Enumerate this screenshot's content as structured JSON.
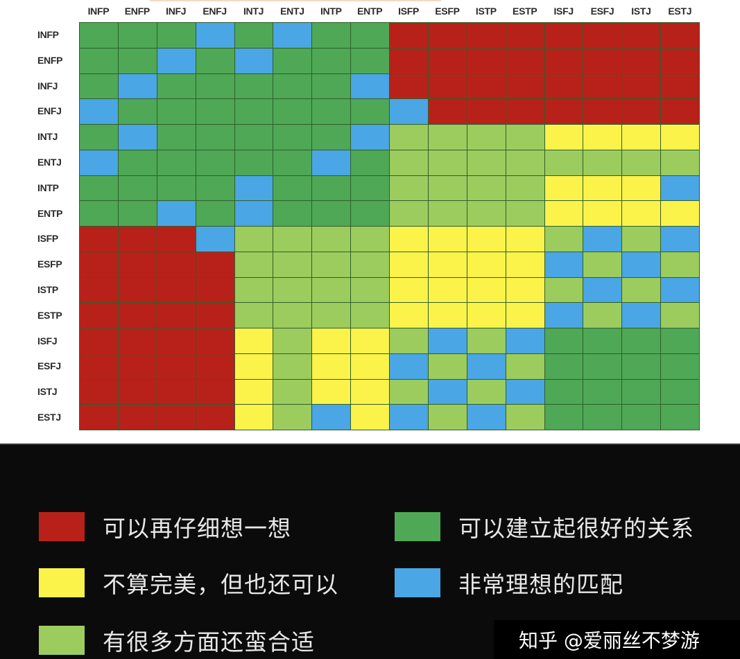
{
  "chart_data": {
    "type": "heatmap",
    "title": "",
    "xlabel": "",
    "ylabel": "",
    "x_labels": [
      "INFP",
      "ENFP",
      "INFJ",
      "ENFJ",
      "INTJ",
      "ENTJ",
      "INTP",
      "ENTP",
      "ISFP",
      "ESFP",
      "ISTP",
      "ESTP",
      "ISFJ",
      "ESFJ",
      "ISTJ",
      "ESTJ"
    ],
    "y_labels": [
      "INFP",
      "ENFP",
      "INFJ",
      "ENFJ",
      "INTJ",
      "ENTJ",
      "INTP",
      "ENTP",
      "ISFP",
      "ESFP",
      "ISTP",
      "ESTP",
      "ISFJ",
      "ESFJ",
      "ISTJ",
      "ESTJ"
    ],
    "categories": {
      "R": {
        "label": "可以再仔细想一想",
        "color": "#b8211a"
      },
      "Y": {
        "label": "不算完美，但也还可以",
        "color": "#fbf34a"
      },
      "L": {
        "label": "有很多方面还蛮合适",
        "color": "#9ccc5e"
      },
      "G": {
        "label": "可以建立起很好的关系",
        "color": "#4ea856"
      },
      "B": {
        "label": "非常理想的匹配",
        "color": "#4aa6e4"
      }
    },
    "matrix": [
      [
        "G",
        "G",
        "G",
        "B",
        "G",
        "B",
        "G",
        "G",
        "R",
        "R",
        "R",
        "R",
        "R",
        "R",
        "R",
        "R"
      ],
      [
        "G",
        "G",
        "B",
        "G",
        "B",
        "G",
        "G",
        "G",
        "R",
        "R",
        "R",
        "R",
        "R",
        "R",
        "R",
        "R"
      ],
      [
        "G",
        "B",
        "G",
        "G",
        "G",
        "G",
        "G",
        "B",
        "R",
        "R",
        "R",
        "R",
        "R",
        "R",
        "R",
        "R"
      ],
      [
        "B",
        "G",
        "G",
        "G",
        "G",
        "G",
        "G",
        "G",
        "B",
        "R",
        "R",
        "R",
        "R",
        "R",
        "R",
        "R"
      ],
      [
        "G",
        "B",
        "G",
        "G",
        "G",
        "G",
        "G",
        "B",
        "L",
        "L",
        "L",
        "L",
        "Y",
        "Y",
        "Y",
        "Y"
      ],
      [
        "B",
        "G",
        "G",
        "G",
        "G",
        "G",
        "B",
        "G",
        "L",
        "L",
        "L",
        "L",
        "L",
        "L",
        "L",
        "L"
      ],
      [
        "G",
        "G",
        "G",
        "G",
        "B",
        "G",
        "G",
        "G",
        "L",
        "L",
        "L",
        "L",
        "Y",
        "Y",
        "Y",
        "B"
      ],
      [
        "G",
        "G",
        "B",
        "G",
        "B",
        "G",
        "G",
        "G",
        "L",
        "L",
        "L",
        "L",
        "Y",
        "Y",
        "Y",
        "Y"
      ],
      [
        "R",
        "R",
        "R",
        "B",
        "L",
        "L",
        "L",
        "L",
        "Y",
        "Y",
        "Y",
        "Y",
        "L",
        "B",
        "L",
        "B"
      ],
      [
        "R",
        "R",
        "R",
        "R",
        "L",
        "L",
        "L",
        "L",
        "Y",
        "Y",
        "Y",
        "Y",
        "B",
        "L",
        "B",
        "L"
      ],
      [
        "R",
        "R",
        "R",
        "R",
        "L",
        "L",
        "L",
        "L",
        "Y",
        "Y",
        "Y",
        "Y",
        "L",
        "B",
        "L",
        "B"
      ],
      [
        "R",
        "R",
        "R",
        "R",
        "L",
        "L",
        "L",
        "L",
        "Y",
        "Y",
        "Y",
        "Y",
        "B",
        "L",
        "B",
        "L"
      ],
      [
        "R",
        "R",
        "R",
        "R",
        "Y",
        "L",
        "Y",
        "Y",
        "L",
        "B",
        "L",
        "B",
        "G",
        "G",
        "G",
        "G"
      ],
      [
        "R",
        "R",
        "R",
        "R",
        "Y",
        "L",
        "Y",
        "Y",
        "B",
        "L",
        "B",
        "L",
        "G",
        "G",
        "G",
        "G"
      ],
      [
        "R",
        "R",
        "R",
        "R",
        "Y",
        "L",
        "Y",
        "Y",
        "L",
        "B",
        "L",
        "B",
        "G",
        "G",
        "G",
        "G"
      ],
      [
        "R",
        "R",
        "R",
        "R",
        "Y",
        "L",
        "B",
        "Y",
        "B",
        "L",
        "B",
        "L",
        "G",
        "G",
        "G",
        "G"
      ]
    ],
    "legend_position": "bottom",
    "grid": true
  },
  "legend": {
    "items": [
      {
        "key": "R",
        "label": "可以再仔细想一想",
        "color": "#b8211a"
      },
      {
        "key": "G",
        "label": "可以建立起很好的关系",
        "color": "#4ea856"
      },
      {
        "key": "Y",
        "label": "不算完美，但也还可以",
        "color": "#fbf34a"
      },
      {
        "key": "B",
        "label": "非常理想的匹配",
        "color": "#4aa6e4"
      },
      {
        "key": "L",
        "label": "有很多方面还蛮合适",
        "color": "#9ccc5e"
      }
    ]
  },
  "watermark": {
    "text": "知乎 @爱丽丝不梦游"
  }
}
